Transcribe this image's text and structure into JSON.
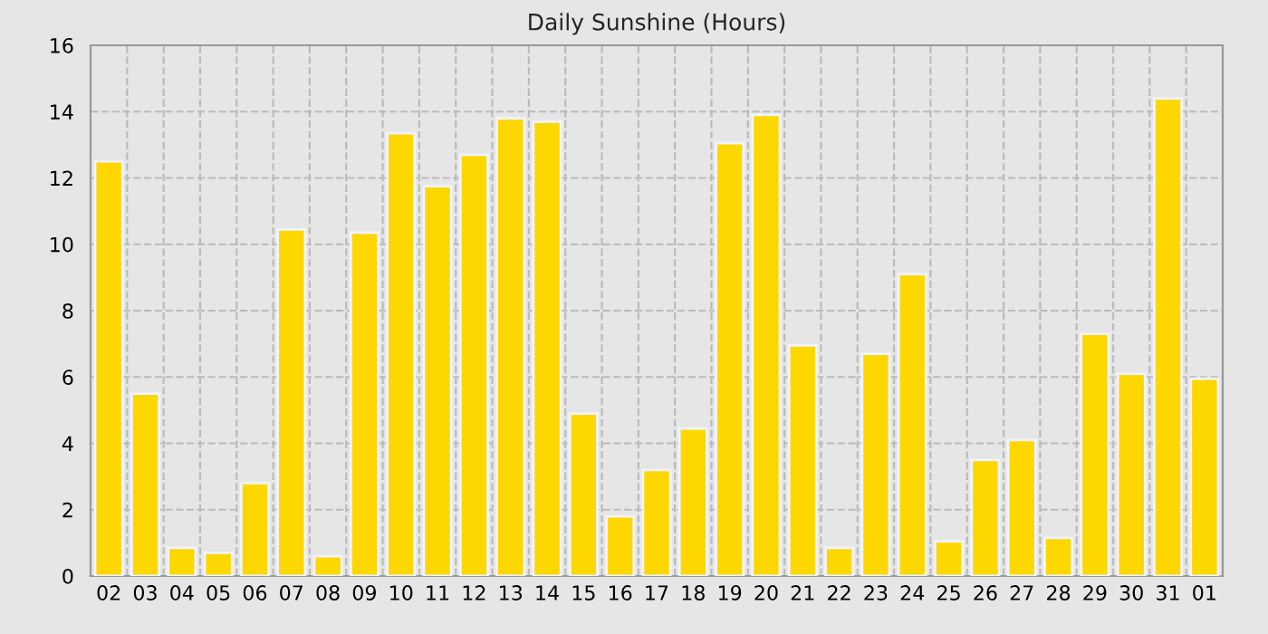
{
  "chart_data": {
    "type": "bar",
    "title": "Daily Sunshine (Hours)",
    "categories": [
      "02",
      "03",
      "04",
      "05",
      "06",
      "07",
      "08",
      "09",
      "10",
      "11",
      "12",
      "13",
      "14",
      "15",
      "16",
      "17",
      "18",
      "19",
      "20",
      "21",
      "22",
      "23",
      "24",
      "25",
      "26",
      "27",
      "28",
      "29",
      "30",
      "31",
      "01"
    ],
    "values": [
      12.5,
      5.5,
      0.85,
      0.7,
      2.8,
      10.45,
      0.6,
      10.35,
      13.35,
      11.75,
      12.7,
      13.8,
      13.7,
      4.9,
      1.8,
      3.2,
      4.45,
      13.05,
      13.9,
      6.95,
      0.85,
      6.7,
      9.1,
      1.05,
      3.5,
      4.1,
      1.15,
      7.3,
      6.1,
      14.4,
      5.95
    ],
    "color": "#ffd700",
    "ylim": [
      0,
      16
    ],
    "yticks": [
      0,
      2,
      4,
      6,
      8,
      10,
      12,
      14,
      16
    ],
    "grid": true
  }
}
